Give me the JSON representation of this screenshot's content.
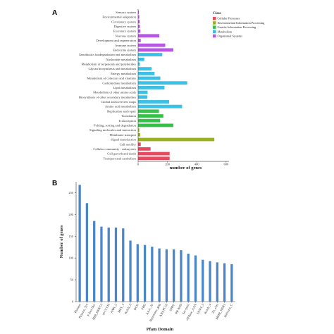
{
  "chart_data": [
    {
      "type": "bar",
      "panel": "A",
      "orientation": "horizontal",
      "categories": [
        "Sensory system",
        "Environmental adaptation",
        "Circulatory system",
        "Digestive system",
        "Excretory system",
        "Nervous system",
        "Development and regeneration",
        "Immune system",
        "Endocrine system",
        "Xenobiotics biodegradation and metabolism",
        "Nucleotide metabolism",
        "Metabolism of terpenoids and polyketides",
        "Glycan biosynthesis and metabolism",
        "Energy metabolism",
        "Metabolism of cofactors and vitamins",
        "Carbohydrate metabolism",
        "Lipid metabolism",
        "Metabolism of other amino acids",
        "Biosynthesis of other secondary metabolites",
        "Global and overview maps",
        "Amino acid metabolism",
        "Replication and repair",
        "Translation",
        "Transcription",
        "Folding, sorting and degradation",
        "Signaling molecules and interaction",
        "Membrane transport",
        "Signal transduction",
        "Cell motility",
        "Cellular community - eukaryotes",
        "Cell growth and death",
        "Transport and catabolism"
      ],
      "values": [
        5,
        8,
        11,
        12,
        16,
        145,
        18,
        185,
        240,
        165,
        42,
        12,
        92,
        112,
        152,
        335,
        180,
        65,
        62,
        212,
        300,
        142,
        172,
        150,
        240,
        8,
        15,
        520,
        18,
        85,
        215,
        215
      ],
      "groups": [
        "Organismal Systems",
        "Organismal Systems",
        "Organismal Systems",
        "Organismal Systems",
        "Organismal Systems",
        "Organismal Systems",
        "Organismal Systems",
        "Organismal Systems",
        "Organismal Systems",
        "Metabolism",
        "Metabolism",
        "Metabolism",
        "Metabolism",
        "Metabolism",
        "Metabolism",
        "Metabolism",
        "Metabolism",
        "Metabolism",
        "Metabolism",
        "Metabolism",
        "Metabolism",
        "Genetic Information Processing",
        "Genetic Information Processing",
        "Genetic Information Processing",
        "Genetic Information Processing",
        "Environmental Information Processing",
        "Environmental Information Processing",
        "Environmental Information Processing",
        "Cellular Processes",
        "Cellular Processes",
        "Cellular Processes",
        "Cellular Processes"
      ],
      "legend_title": "Class",
      "legend": [
        {
          "name": "Cellular Processes",
          "color": "#e8495f"
        },
        {
          "name": "Environmental Information Processing",
          "color": "#9ab21f"
        },
        {
          "name": "Genetic Information Processing",
          "color": "#36c24a"
        },
        {
          "name": "Metabolism",
          "color": "#3dc0e6"
        },
        {
          "name": "Organismal Systems",
          "color": "#b557e3"
        }
      ],
      "legend_placement": "top-right",
      "xlabel": "number of genes",
      "x_ticks": [
        0,
        200,
        400,
        600
      ],
      "xlim": [
        0,
        620
      ],
      "ylabel": "",
      "grid": false
    },
    {
      "type": "bar",
      "panel": "B",
      "orientation": "vertical",
      "categories": [
        "Pkinase",
        "Pkinase_Tyr",
        "F-box-like",
        "MIB_HERC2",
        "zf-CCCH",
        "ANK_2",
        "MFS_1",
        "Kelch_6",
        "DCD",
        "FBD",
        "AAA_32",
        "Retrotrans_gag",
        "ANAPC10",
        "SPRY",
        "PR-Nrf0",
        "Sec-pot2",
        "ATPase_AAA",
        "DUF4_3",
        "Kelch_4",
        "Zn_clus",
        "MMR_HSR1",
        "Helicase_C"
      ],
      "values": [
        268,
        226,
        185,
        172,
        170,
        170,
        168,
        140,
        132,
        130,
        126,
        122,
        120,
        120,
        118,
        110,
        106,
        96,
        93,
        90,
        88,
        86
      ],
      "xlabel": "Pfam Domain",
      "ylabel": "Number of genes",
      "y_ticks": [
        0,
        50,
        100,
        150,
        200,
        250
      ],
      "ylim": [
        0,
        275
      ],
      "bar_color": "#4a86c8",
      "grid": false
    }
  ],
  "panels": {
    "a": "A",
    "b": "B"
  }
}
